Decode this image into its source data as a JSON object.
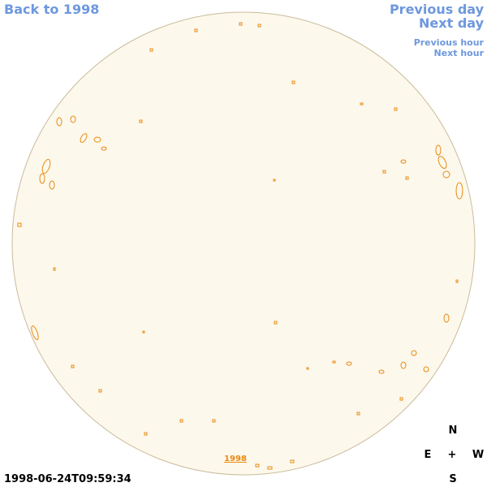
{
  "nav": {
    "back": "Back to 1998",
    "previous_day": "Previous day",
    "next_day": "Next day",
    "previous_hour": "Previous hour",
    "next_hour": "Next hour"
  },
  "timestamp": "1998-06-24T09:59:34",
  "disk_label": "1998",
  "compass": {
    "north": "N",
    "east": "E",
    "center": "+",
    "west": "W",
    "south": "S"
  }
}
